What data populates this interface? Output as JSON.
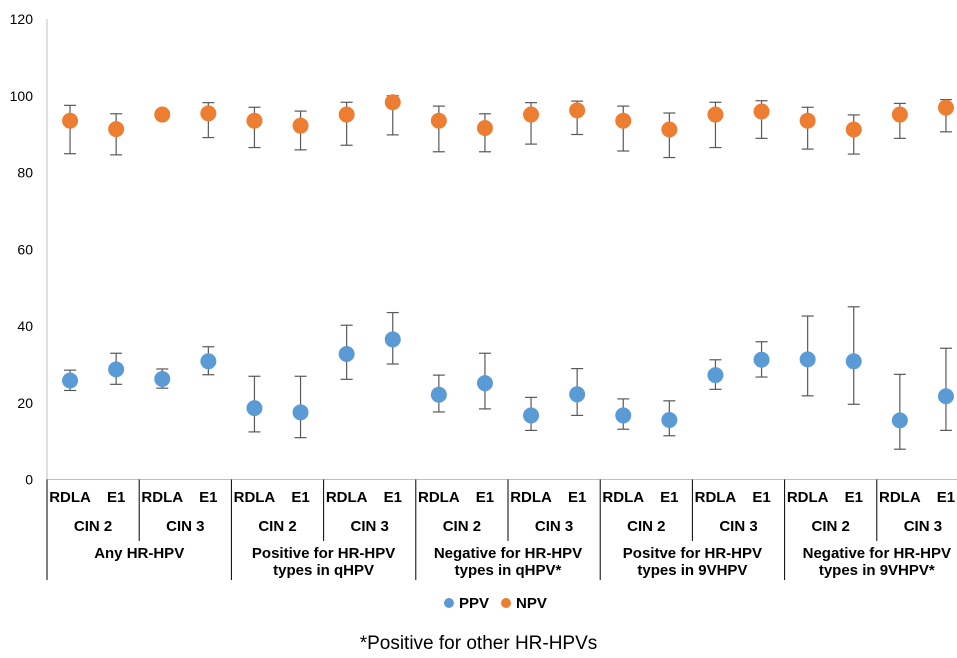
{
  "chart_data": {
    "type": "scatter",
    "ylim": [
      0,
      120
    ],
    "yticks": [
      0,
      20,
      40,
      60,
      80,
      100,
      120
    ],
    "grid": false,
    "legend_position": "bottom",
    "x_levels": {
      "level1": [
        "RDLA",
        "E1",
        "RDLA",
        "E1",
        "RDLA",
        "E1",
        "RDLA",
        "E1",
        "RDLA",
        "E1",
        "RDLA",
        "E1",
        "RDLA",
        "E1",
        "RDLA",
        "E1",
        "RDLA",
        "E1",
        "RDLA",
        "E1"
      ],
      "level2": [
        "CIN 2",
        "CIN 3",
        "CIN 2",
        "CIN 3",
        "CIN 2",
        "CIN 3",
        "CIN 2",
        "CIN 3",
        "CIN 2",
        "CIN 3"
      ],
      "level3": [
        [
          "Any HR-HPV"
        ],
        [
          "Positive for HR-HPV",
          "types in qHPV"
        ],
        [
          "Negative for HR-HPV",
          "types in qHPV*"
        ],
        [
          "Positve for HR-HPV",
          "types in 9VHPV"
        ],
        [
          "Negative for HR-HPV",
          "types in 9VHPV*"
        ]
      ]
    },
    "series": [
      {
        "name": "PPV",
        "color": "#5b9bd5",
        "values": [
          25.8,
          28.7,
          26.2,
          30.8,
          18.6,
          17.5,
          32.7,
          36.5,
          22.1,
          25.1,
          16.7,
          22.2,
          16.7,
          15.5,
          27.2,
          31.2,
          31.3,
          30.8,
          15.4,
          21.7
        ],
        "error_low": [
          23.2,
          24.8,
          23.8,
          27.3,
          12.4,
          10.9,
          26.1,
          30.1,
          17.6,
          18.4,
          12.8,
          16.7,
          13.1,
          11.4,
          23.5,
          26.7,
          21.8,
          19.6,
          7.9,
          12.8
        ],
        "error_high": [
          28.5,
          32.9,
          28.8,
          34.6,
          26.9,
          26.9,
          40.2,
          43.5,
          27.2,
          32.9,
          21.4,
          28.9,
          21.0,
          20.5,
          31.2,
          35.9,
          42.6,
          45.0,
          27.4,
          34.2
        ]
      },
      {
        "name": "NPV",
        "color": "#ed7d31",
        "values": [
          93.5,
          91.3,
          95.1,
          95.4,
          93.5,
          92.2,
          95.1,
          98.3,
          93.5,
          91.6,
          95.1,
          96.2,
          93.5,
          91.2,
          95.1,
          95.9,
          93.5,
          91.2,
          95.1,
          96.9
        ],
        "error_low": [
          84.9,
          84.6,
          95.1,
          89.1,
          86.5,
          85.9,
          87.1,
          89.8,
          85.4,
          85.4,
          87.4,
          89.9,
          85.6,
          83.9,
          86.5,
          88.9,
          86.1,
          84.8,
          88.9,
          90.6
        ],
        "error_high": [
          97.5,
          95.3,
          95.1,
          98.2,
          97.0,
          96.0,
          98.3,
          100.0,
          97.3,
          95.3,
          98.2,
          98.6,
          97.3,
          95.5,
          98.3,
          98.7,
          97.0,
          95.0,
          98.0,
          99.0
        ]
      }
    ],
    "footnote": "*Positive for other HR-HPVs"
  }
}
